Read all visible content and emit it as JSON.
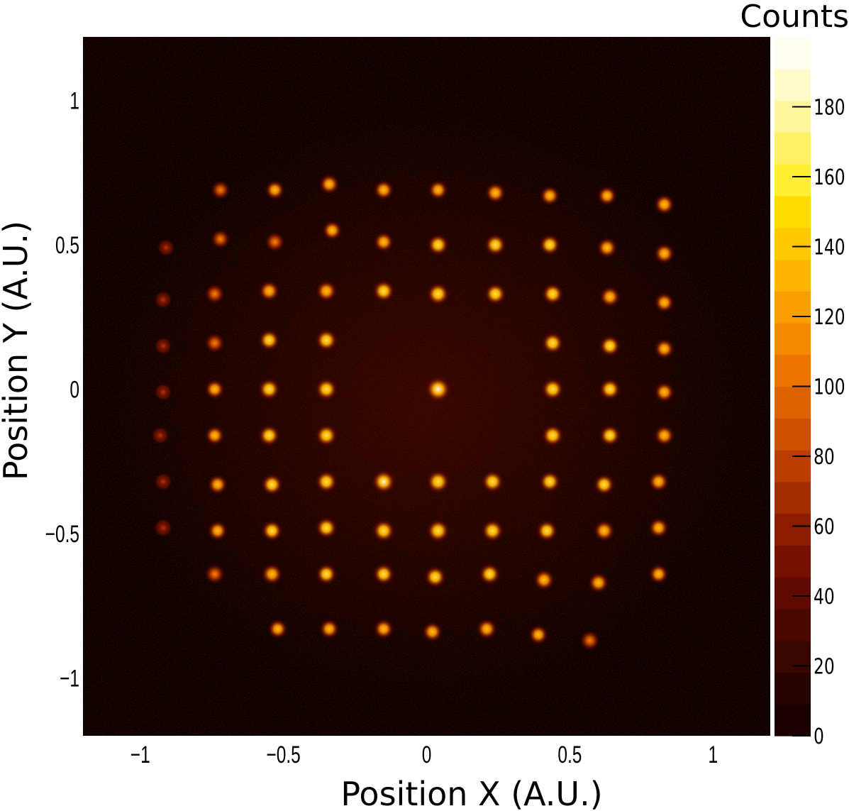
{
  "chart_data": {
    "type": "heatmap",
    "xlabel": "Position X (A.U.)",
    "ylabel": "Position Y (A.U.)",
    "xlim": [
      -1.2,
      1.2
    ],
    "ylim": [
      -1.2,
      1.22
    ],
    "x_ticks": [
      {
        "value": -1,
        "label": "−1"
      },
      {
        "value": -0.5,
        "label": "−0.5"
      },
      {
        "value": 0,
        "label": "0"
      },
      {
        "value": 0.5,
        "label": "0.5"
      },
      {
        "value": 1,
        "label": "1"
      }
    ],
    "y_ticks": [
      {
        "value": -1,
        "label": "−1"
      },
      {
        "value": -0.5,
        "label": "−0.5"
      },
      {
        "value": 0,
        "label": "0"
      },
      {
        "value": 0.5,
        "label": "0.5"
      },
      {
        "value": 1,
        "label": "1"
      }
    ],
    "colorbar": {
      "title": "Counts",
      "range": [
        0,
        200
      ],
      "ticks": [
        0,
        20,
        40,
        60,
        80,
        100,
        120,
        140,
        160,
        180
      ],
      "colors": [
        "#1b0000",
        "#280400",
        "#380700",
        "#4a0800",
        "#5e0a00",
        "#751100",
        "#8c1c00",
        "#a32c00",
        "#b93e00",
        "#cc5000",
        "#dd6200",
        "#ec7500",
        "#f58a00",
        "#fb9f00",
        "#ffb400",
        "#ffc800",
        "#ffdc00",
        "#ffee33",
        "#fff066",
        "#fff599",
        "#fffacc",
        "#fffef0"
      ]
    },
    "background": "#0c0000",
    "spots": [
      {
        "x": -0.72,
        "y": 0.69,
        "v": 70
      },
      {
        "x": -0.53,
        "y": 0.69,
        "v": 85
      },
      {
        "x": -0.34,
        "y": 0.71,
        "v": 95
      },
      {
        "x": -0.15,
        "y": 0.69,
        "v": 95
      },
      {
        "x": 0.04,
        "y": 0.69,
        "v": 90
      },
      {
        "x": 0.24,
        "y": 0.68,
        "v": 100
      },
      {
        "x": 0.43,
        "y": 0.67,
        "v": 90
      },
      {
        "x": 0.63,
        "y": 0.67,
        "v": 85
      },
      {
        "x": 0.83,
        "y": 0.64,
        "v": 100
      },
      {
        "x": -0.91,
        "y": 0.49,
        "v": 35
      },
      {
        "x": -0.72,
        "y": 0.52,
        "v": 70
      },
      {
        "x": -0.53,
        "y": 0.51,
        "v": 80
      },
      {
        "x": -0.33,
        "y": 0.55,
        "v": 90
      },
      {
        "x": -0.15,
        "y": 0.51,
        "v": 95
      },
      {
        "x": 0.04,
        "y": 0.5,
        "v": 120
      },
      {
        "x": 0.24,
        "y": 0.5,
        "v": 125
      },
      {
        "x": 0.43,
        "y": 0.5,
        "v": 115
      },
      {
        "x": 0.63,
        "y": 0.49,
        "v": 100
      },
      {
        "x": 0.83,
        "y": 0.47,
        "v": 100
      },
      {
        "x": -0.92,
        "y": 0.31,
        "v": 40
      },
      {
        "x": -0.74,
        "y": 0.33,
        "v": 80
      },
      {
        "x": -0.55,
        "y": 0.34,
        "v": 105
      },
      {
        "x": -0.35,
        "y": 0.34,
        "v": 110
      },
      {
        "x": -0.15,
        "y": 0.34,
        "v": 130
      },
      {
        "x": 0.04,
        "y": 0.33,
        "v": 140
      },
      {
        "x": 0.24,
        "y": 0.33,
        "v": 125
      },
      {
        "x": 0.44,
        "y": 0.33,
        "v": 120
      },
      {
        "x": 0.64,
        "y": 0.32,
        "v": 105
      },
      {
        "x": 0.83,
        "y": 0.3,
        "v": 90
      },
      {
        "x": -0.92,
        "y": 0.15,
        "v": 35
      },
      {
        "x": -0.74,
        "y": 0.16,
        "v": 80
      },
      {
        "x": -0.55,
        "y": 0.17,
        "v": 115
      },
      {
        "x": -0.35,
        "y": 0.17,
        "v": 130
      },
      {
        "x": 0.44,
        "y": 0.16,
        "v": 125
      },
      {
        "x": 0.64,
        "y": 0.15,
        "v": 115
      },
      {
        "x": 0.83,
        "y": 0.14,
        "v": 95
      },
      {
        "x": -0.92,
        "y": -0.01,
        "v": 35
      },
      {
        "x": -0.74,
        "y": 0.0,
        "v": 90
      },
      {
        "x": -0.55,
        "y": 0.0,
        "v": 125
      },
      {
        "x": -0.35,
        "y": 0.0,
        "v": 135
      },
      {
        "x": 0.04,
        "y": 0.0,
        "v": 190
      },
      {
        "x": 0.44,
        "y": 0.0,
        "v": 135
      },
      {
        "x": 0.64,
        "y": 0.0,
        "v": 120
      },
      {
        "x": 0.83,
        "y": -0.01,
        "v": 95
      },
      {
        "x": -0.93,
        "y": -0.16,
        "v": 35
      },
      {
        "x": -0.74,
        "y": -0.16,
        "v": 85
      },
      {
        "x": -0.55,
        "y": -0.16,
        "v": 120
      },
      {
        "x": -0.35,
        "y": -0.16,
        "v": 130
      },
      {
        "x": 0.44,
        "y": -0.16,
        "v": 130
      },
      {
        "x": 0.64,
        "y": -0.16,
        "v": 115
      },
      {
        "x": 0.83,
        "y": -0.16,
        "v": 100
      },
      {
        "x": -0.92,
        "y": -0.32,
        "v": 40
      },
      {
        "x": -0.73,
        "y": -0.33,
        "v": 90
      },
      {
        "x": -0.54,
        "y": -0.33,
        "v": 120
      },
      {
        "x": -0.35,
        "y": -0.32,
        "v": 130
      },
      {
        "x": -0.15,
        "y": -0.32,
        "v": 160
      },
      {
        "x": 0.04,
        "y": -0.32,
        "v": 150
      },
      {
        "x": 0.23,
        "y": -0.32,
        "v": 130
      },
      {
        "x": 0.43,
        "y": -0.32,
        "v": 120
      },
      {
        "x": 0.62,
        "y": -0.33,
        "v": 115
      },
      {
        "x": 0.81,
        "y": -0.32,
        "v": 100
      },
      {
        "x": -0.92,
        "y": -0.48,
        "v": 50
      },
      {
        "x": -0.73,
        "y": -0.49,
        "v": 90
      },
      {
        "x": -0.54,
        "y": -0.49,
        "v": 115
      },
      {
        "x": -0.35,
        "y": -0.48,
        "v": 125
      },
      {
        "x": -0.15,
        "y": -0.49,
        "v": 140
      },
      {
        "x": 0.04,
        "y": -0.49,
        "v": 145
      },
      {
        "x": 0.23,
        "y": -0.49,
        "v": 135
      },
      {
        "x": 0.42,
        "y": -0.49,
        "v": 120
      },
      {
        "x": 0.62,
        "y": -0.49,
        "v": 110
      },
      {
        "x": 0.81,
        "y": -0.48,
        "v": 95
      },
      {
        "x": -0.74,
        "y": -0.64,
        "v": 80
      },
      {
        "x": -0.54,
        "y": -0.64,
        "v": 110
      },
      {
        "x": -0.35,
        "y": -0.64,
        "v": 115
      },
      {
        "x": -0.15,
        "y": -0.64,
        "v": 120
      },
      {
        "x": 0.03,
        "y": -0.65,
        "v": 125
      },
      {
        "x": 0.22,
        "y": -0.64,
        "v": 120
      },
      {
        "x": 0.41,
        "y": -0.66,
        "v": 110
      },
      {
        "x": 0.6,
        "y": -0.67,
        "v": 100
      },
      {
        "x": 0.81,
        "y": -0.64,
        "v": 85
      },
      {
        "x": -0.52,
        "y": -0.83,
        "v": 85
      },
      {
        "x": -0.34,
        "y": -0.83,
        "v": 90
      },
      {
        "x": -0.15,
        "y": -0.83,
        "v": 95
      },
      {
        "x": 0.02,
        "y": -0.84,
        "v": 95
      },
      {
        "x": 0.21,
        "y": -0.83,
        "v": 100
      },
      {
        "x": 0.39,
        "y": -0.85,
        "v": 85
      },
      {
        "x": 0.57,
        "y": -0.87,
        "v": 80
      }
    ]
  }
}
